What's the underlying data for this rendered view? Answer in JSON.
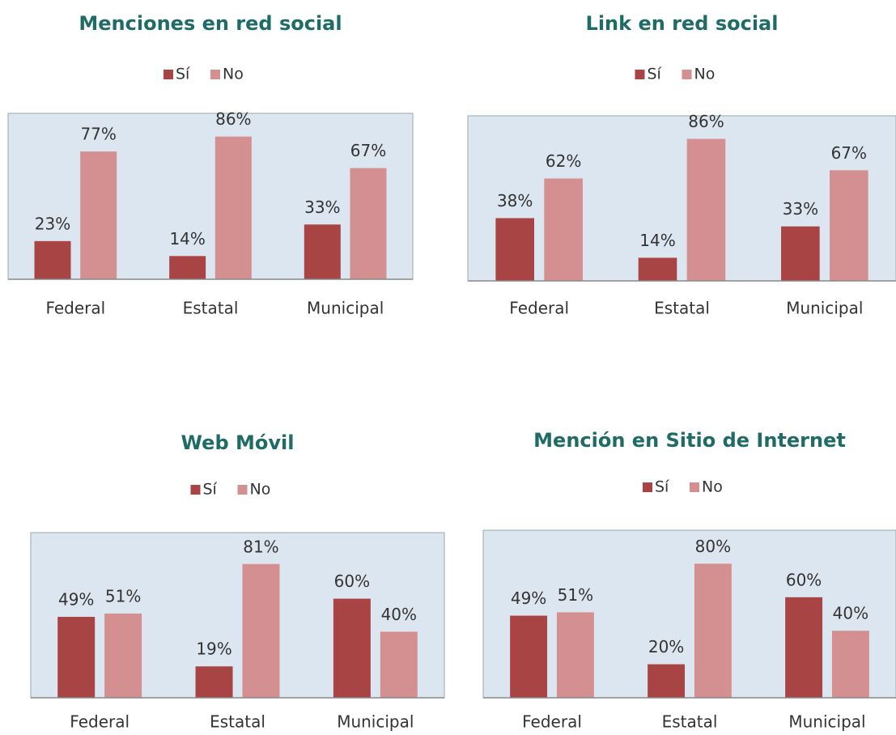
{
  "chart_data": [
    {
      "type": "bar",
      "title": "Menciones en red social",
      "categories": [
        "Federal",
        "Estatal",
        "Municipal"
      ],
      "series": [
        {
          "name": "Sí",
          "color": "#a84444",
          "values": [
            23,
            14,
            33
          ],
          "value_labels": [
            "23%",
            "14%",
            "33%"
          ]
        },
        {
          "name": "No",
          "color": "#d49090",
          "values": [
            77,
            86,
            67
          ],
          "value_labels": [
            "77%",
            "86%",
            "67%"
          ]
        }
      ],
      "ylim": [
        0,
        100
      ]
    },
    {
      "type": "bar",
      "title": "Link en red social",
      "categories": [
        "Federal",
        "Estatal",
        "Municipal"
      ],
      "series": [
        {
          "name": "Sí",
          "color": "#a84444",
          "values": [
            38,
            14,
            33
          ],
          "value_labels": [
            "38%",
            "14%",
            "33%"
          ]
        },
        {
          "name": "No",
          "color": "#d49090",
          "values": [
            62,
            86,
            67
          ],
          "value_labels": [
            "62%",
            "86%",
            "67%"
          ]
        }
      ],
      "ylim": [
        0,
        100
      ]
    },
    {
      "type": "bar",
      "title": "Web Móvil",
      "categories": [
        "Federal",
        "Estatal",
        "Municipal"
      ],
      "series": [
        {
          "name": "Sí",
          "color": "#a84444",
          "values": [
            49,
            19,
            60
          ],
          "value_labels": [
            "49%",
            "19%",
            "60%"
          ]
        },
        {
          "name": "No",
          "color": "#d49090",
          "values": [
            51,
            81,
            40
          ],
          "value_labels": [
            "51%",
            "81%",
            "40%"
          ]
        }
      ],
      "ylim": [
        0,
        100
      ]
    },
    {
      "type": "bar",
      "title": "Mención en Sitio de Internet",
      "categories": [
        "Federal",
        "Estatal",
        "Municipal"
      ],
      "series": [
        {
          "name": "Sí",
          "color": "#a84444",
          "values": [
            49,
            20,
            60
          ],
          "value_labels": [
            "49%",
            "20%",
            "60%"
          ]
        },
        {
          "name": "No",
          "color": "#d49090",
          "values": [
            51,
            80,
            40
          ],
          "value_labels": [
            "51%",
            "80%",
            "40%"
          ]
        }
      ],
      "ylim": [
        0,
        100
      ]
    }
  ]
}
